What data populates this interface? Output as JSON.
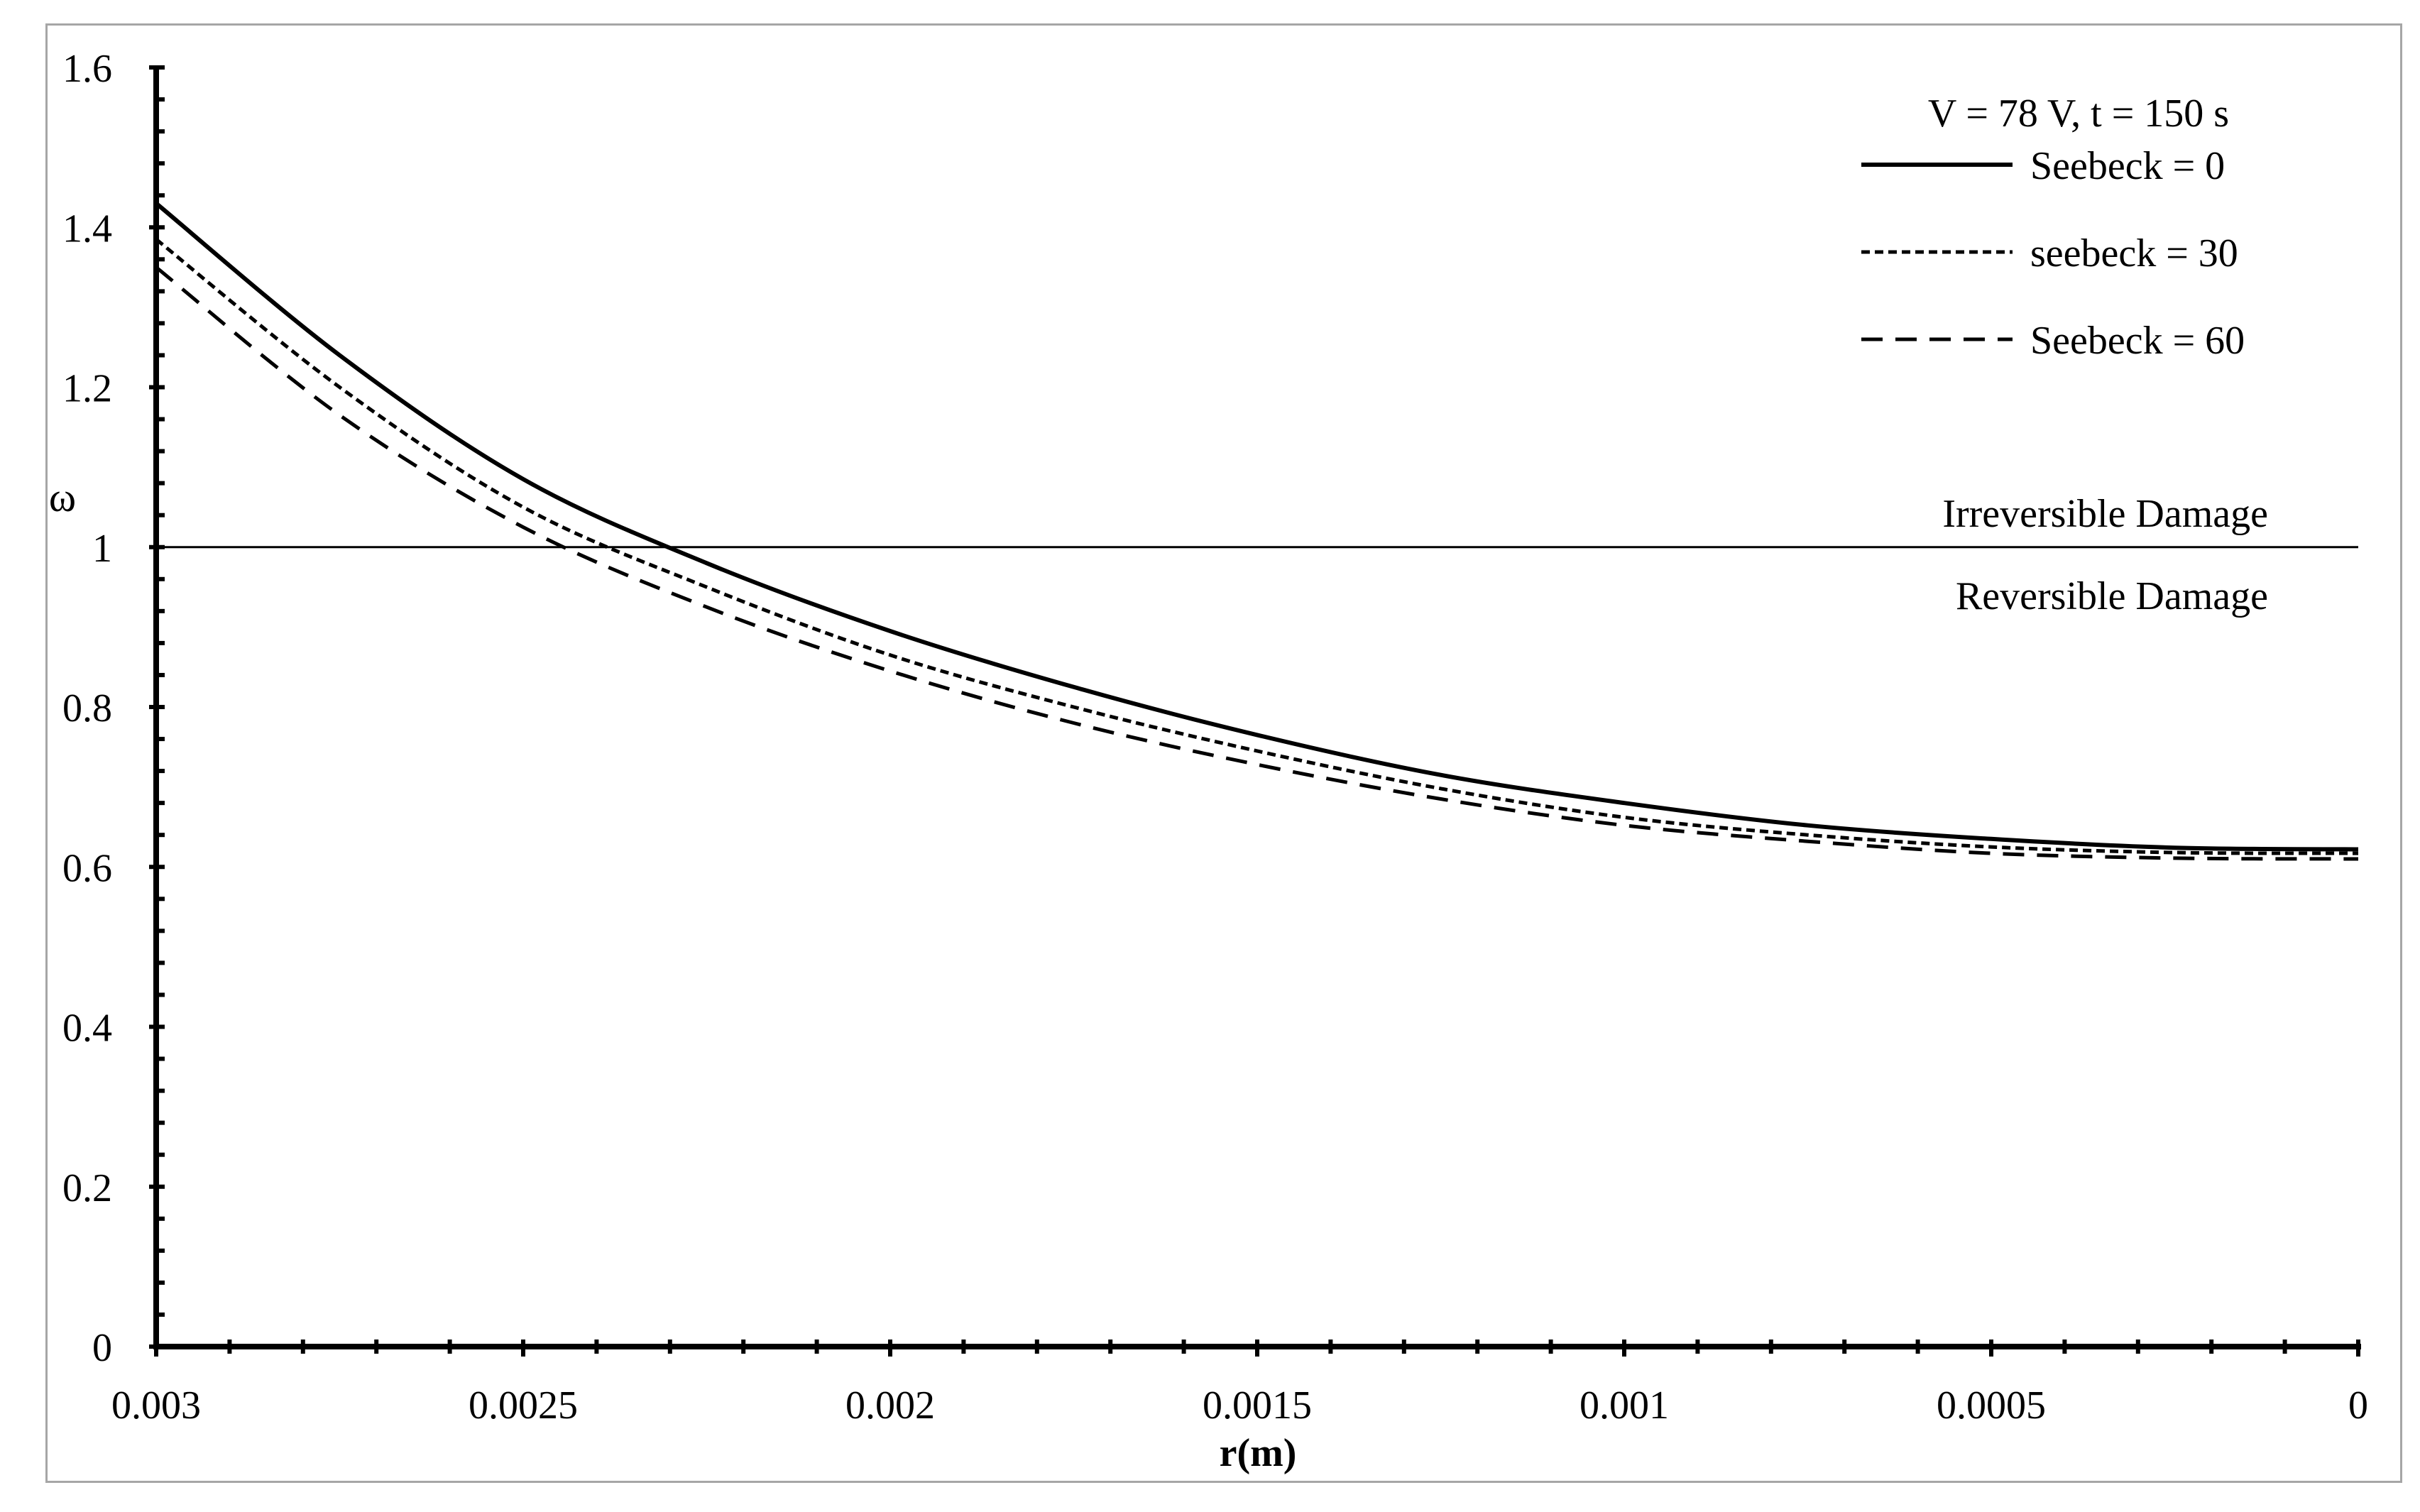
{
  "chart_data": {
    "type": "line",
    "title": "",
    "xlabel": "r(m)",
    "ylabel": "ω",
    "xlim": [
      0.003,
      0
    ],
    "ylim": [
      0,
      1.6
    ],
    "x_reversed": true,
    "grid": false,
    "x_ticks": [
      0.003,
      0.0025,
      0.002,
      0.0015,
      0.001,
      0.0005,
      0
    ],
    "x_tick_labels": [
      "0.003",
      "0.0025",
      "0.002",
      "0.0015",
      "0.001",
      "0.0005",
      "0"
    ],
    "y_ticks": [
      0,
      0.2,
      0.4,
      0.6,
      0.8,
      1,
      1.2,
      1.4,
      1.6
    ],
    "y_tick_labels": [
      "0",
      "0.2",
      "0.4",
      "0.6",
      "0.8",
      "1",
      "1.2",
      "1.4",
      "1.6"
    ],
    "x": [
      0.003,
      0.00275,
      0.0025,
      0.00225,
      0.002,
      0.00175,
      0.0015,
      0.00125,
      0.001,
      0.00075,
      0.0005,
      0.00025,
      0
    ],
    "series": [
      {
        "name": "Seebeck = 0",
        "style": "solid",
        "values": [
          1.43,
          1.24,
          1.085,
          0.98,
          0.895,
          0.825,
          0.765,
          0.715,
          0.68,
          0.652,
          0.635,
          0.624,
          0.622
        ]
      },
      {
        "name": "seebeck = 30",
        "style": "dotted",
        "values": [
          1.385,
          1.2,
          1.05,
          0.95,
          0.865,
          0.8,
          0.745,
          0.698,
          0.662,
          0.64,
          0.625,
          0.618,
          0.617
        ]
      },
      {
        "name": "Seebeck = 60",
        "style": "dashed",
        "values": [
          1.35,
          1.165,
          1.025,
          0.925,
          0.845,
          0.78,
          0.728,
          0.685,
          0.652,
          0.632,
          0.617,
          0.611,
          0.61
        ]
      }
    ],
    "reference_line": {
      "y": 1,
      "label_above": "Irreversible Damage",
      "label_below": "Reversible Damage"
    },
    "legend": {
      "title": "V = 78 V, t = 150 s",
      "position": "top-right"
    }
  }
}
